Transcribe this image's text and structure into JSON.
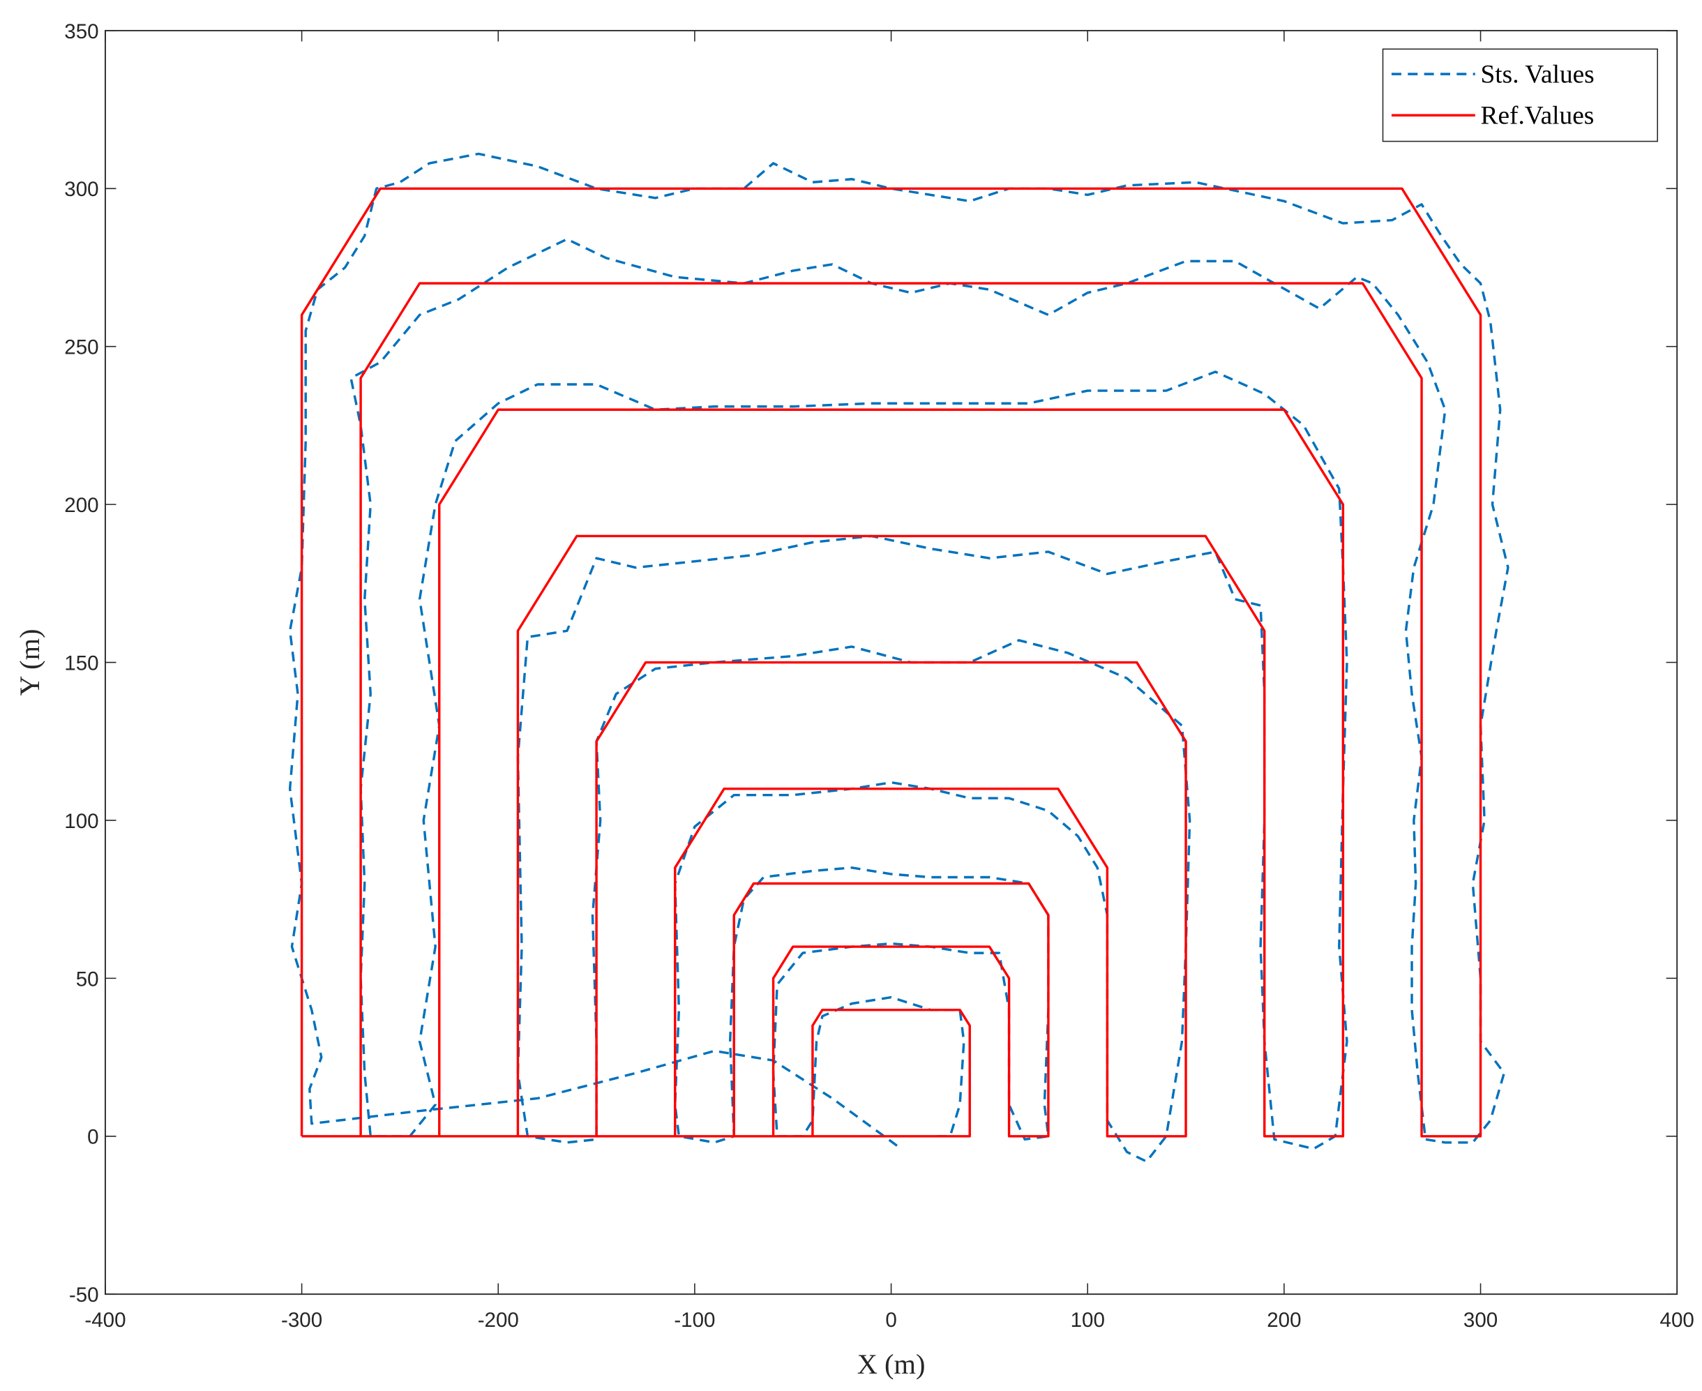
{
  "chart_data": {
    "type": "line",
    "x_label": "X (m)",
    "y_label": "Y (m)",
    "xlim": [
      -400,
      400
    ],
    "xticks": [
      -400,
      -300,
      -200,
      -100,
      0,
      100,
      200,
      300,
      400
    ],
    "ylim": [
      -50,
      350
    ],
    "yticks": [
      -50,
      0,
      50,
      100,
      150,
      200,
      250,
      300,
      350
    ],
    "grid": false,
    "legend": "northeast",
    "series": [
      {
        "name": "Sts. Values",
        "color": "#0072bd",
        "style": "dashed",
        "x": [
          3,
          -30,
          -60,
          -90,
          -130,
          -180,
          -240,
          -295,
          -296,
          -290,
          -295,
          -305,
          -300,
          -306,
          -302,
          -306,
          -300,
          -298,
          -298,
          -292,
          -278,
          -268,
          -262,
          -250,
          -235,
          -210,
          -180,
          -150,
          -120,
          -100,
          -75,
          -60,
          -40,
          -20,
          0,
          20,
          40,
          60,
          80,
          100,
          120,
          155,
          170,
          200,
          230,
          255,
          270,
          280,
          290,
          300,
          305,
          310,
          306,
          314,
          308,
          300,
          302,
          296,
          300,
          300,
          312,
          305,
          296,
          282,
          272,
          268,
          265,
          265,
          267,
          266,
          270,
          265,
          262,
          266,
          276,
          282,
          273,
          258,
          245,
          237,
          218,
          195,
          175,
          150,
          120,
          100,
          80,
          50,
          30,
          10,
          -10,
          -30,
          -50,
          -75,
          -110,
          -145,
          -165,
          -195,
          -220,
          -240,
          -260,
          -275,
          -270,
          -265,
          -268,
          -265,
          -270,
          -268,
          -270,
          -268,
          -265,
          -245,
          -232,
          -240,
          -232,
          -238,
          -230,
          -240,
          -232,
          -222,
          -200,
          -180,
          -150,
          -120,
          -90,
          -50,
          -10,
          30,
          70,
          100,
          140,
          165,
          190,
          210,
          228,
          230,
          232,
          230,
          228,
          232,
          226,
          215,
          195,
          190,
          188,
          190,
          190,
          188,
          175,
          165,
          140,
          110,
          80,
          50,
          20,
          -10,
          -40,
          -70,
          -100,
          -130,
          -150,
          -165,
          -185,
          -190,
          -188,
          -190,
          -185,
          -165,
          -150,
          -150,
          -152,
          -148,
          -150,
          -140,
          -120,
          -90,
          -50,
          -20,
          10,
          40,
          65,
          90,
          120,
          148,
          152,
          150,
          148,
          140,
          130,
          120,
          110,
          110,
          110,
          105,
          95,
          80,
          60,
          40,
          20,
          0,
          -20,
          -50,
          -80,
          -100,
          -110,
          -108,
          -110,
          -108,
          -90,
          -80,
          -82,
          -80,
          -75,
          -65,
          -40,
          -20,
          0,
          20,
          50,
          70,
          80,
          80,
          78,
          80,
          68,
          60,
          60,
          55,
          40,
          20,
          0,
          -20,
          -45,
          -58,
          -60,
          -58,
          -45,
          -40,
          -38,
          -35,
          -20,
          0,
          20,
          35,
          37,
          35,
          30,
          20
        ],
        "values": [
          -3,
          12,
          24,
          27,
          20,
          12,
          8,
          4,
          15,
          25,
          40,
          60,
          80,
          110,
          140,
          160,
          180,
          220,
          255,
          268,
          275,
          285,
          300,
          302,
          308,
          311,
          307,
          300,
          297,
          300,
          300,
          308,
          302,
          303,
          300,
          298,
          296,
          300,
          300,
          298,
          301,
          302,
          300,
          296,
          289,
          290,
          295,
          285,
          276,
          270,
          258,
          230,
          200,
          180,
          160,
          130,
          100,
          80,
          50,
          30,
          20,
          5,
          -2,
          -2,
          -1,
          20,
          40,
          60,
          80,
          100,
          120,
          140,
          160,
          180,
          200,
          230,
          245,
          260,
          270,
          272,
          262,
          270,
          277,
          277,
          270,
          267,
          260,
          268,
          270,
          267,
          270,
          276,
          274,
          270,
          272,
          278,
          284,
          275,
          265,
          260,
          245,
          240,
          225,
          200,
          170,
          140,
          110,
          80,
          50,
          20,
          0,
          0,
          10,
          30,
          60,
          100,
          130,
          170,
          200,
          220,
          232,
          238,
          238,
          230,
          231,
          231,
          232,
          232,
          232,
          236,
          236,
          242,
          235,
          225,
          205,
          180,
          150,
          110,
          60,
          30,
          0,
          -4,
          -1,
          30,
          60,
          100,
          140,
          168,
          170,
          185,
          182,
          178,
          185,
          183,
          186,
          190,
          188,
          184,
          182,
          180,
          183,
          160,
          158,
          120,
          60,
          20,
          0,
          -2,
          -1,
          30,
          70,
          100,
          125,
          140,
          148,
          150,
          152,
          155,
          150,
          150,
          157,
          153,
          145,
          130,
          100,
          60,
          30,
          0,
          -8,
          -5,
          5,
          40,
          70,
          85,
          95,
          103,
          107,
          107,
          110,
          112,
          110,
          108,
          108,
          98,
          80,
          40,
          10,
          0,
          -2,
          0,
          30,
          60,
          75,
          82,
          84,
          85,
          83,
          82,
          82,
          80,
          70,
          40,
          10,
          0,
          -1,
          10,
          40,
          58,
          58,
          60,
          61,
          60,
          58,
          48,
          20,
          0,
          0,
          5,
          30,
          38,
          42,
          44,
          40,
          40,
          30,
          10,
          0,
          0
        ]
      },
      {
        "name": "Ref.Values",
        "color": "#ff0000",
        "style": "solid",
        "x": [
          -300,
          -300,
          -260,
          260,
          300,
          300,
          270,
          270,
          240,
          -240,
          -270,
          -270,
          -230,
          -230,
          -200,
          200,
          230,
          230,
          190,
          190,
          160,
          -160,
          -190,
          -190,
          -150,
          -150,
          -125,
          125,
          150,
          150,
          110,
          110,
          85,
          -85,
          -110,
          -110,
          -80,
          -80,
          -70,
          70,
          80,
          80,
          60,
          60,
          50,
          -50,
          -60,
          -60,
          -40,
          -40,
          -35,
          35,
          40,
          40,
          -300
        ],
        "values": [
          0,
          260,
          300,
          300,
          260,
          0,
          0,
          240,
          270,
          270,
          240,
          0,
          0,
          200,
          230,
          230,
          200,
          0,
          0,
          160,
          190,
          190,
          160,
          0,
          0,
          125,
          150,
          150,
          125,
          0,
          0,
          85,
          110,
          110,
          85,
          0,
          0,
          70,
          80,
          80,
          70,
          0,
          0,
          50,
          60,
          60,
          50,
          0,
          0,
          35,
          40,
          40,
          35,
          0,
          0
        ]
      }
    ]
  }
}
